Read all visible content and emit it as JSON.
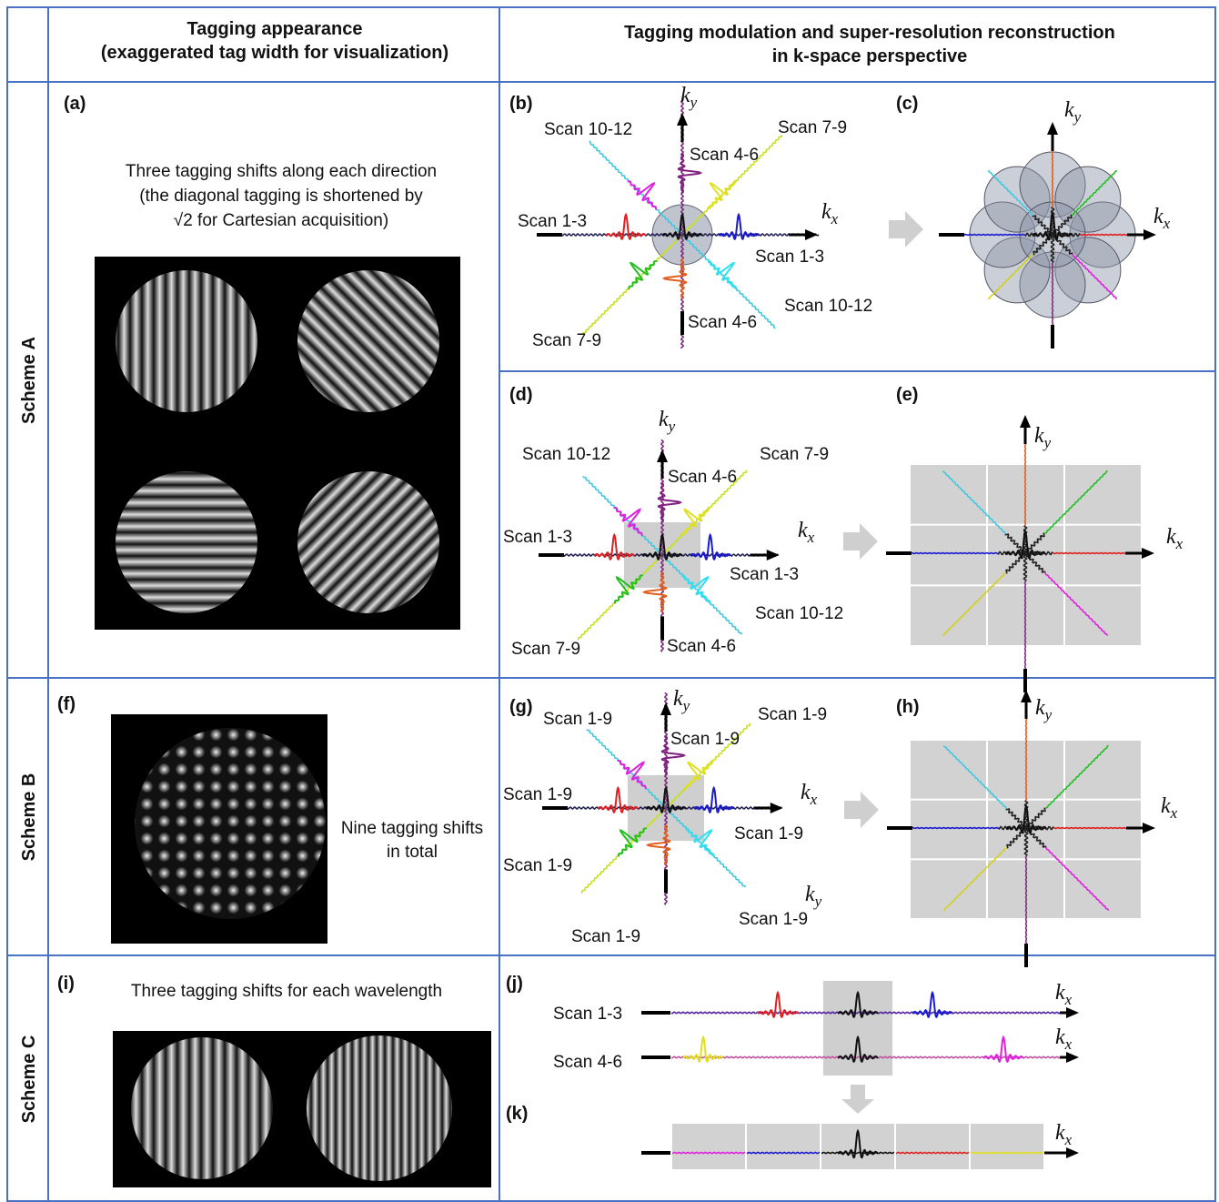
{
  "header": {
    "col2": [
      "Tagging appearance",
      "(exaggerated tag width for visualization)"
    ],
    "col3": [
      "Tagging modulation and super-resolution reconstruction",
      "in k-space perspective"
    ]
  },
  "rows": [
    "Scheme A",
    "Scheme B",
    "Scheme C"
  ],
  "axis": {
    "k": "k",
    "x": "x",
    "y": "y"
  },
  "panels": {
    "a": {
      "label": "(a)",
      "text": [
        "Three tagging shifts along each direction",
        "(the diagonal tagging is shortened by",
        "√2 for Cartesian acquisition)"
      ]
    },
    "b": {
      "label": "(b)",
      "scans": [
        "Scan 10-12",
        "Scan 7-9",
        "Scan 4-6",
        "Scan 1-3",
        "Scan 1-3",
        "Scan 10-12",
        "Scan 4-6",
        "Scan 7-9"
      ]
    },
    "c": {
      "label": "(c)"
    },
    "d": {
      "label": "(d)",
      "scans": [
        "Scan 10-12",
        "Scan 7-9",
        "Scan 4-6",
        "Scan 1-3",
        "Scan 1-3",
        "Scan 10-12",
        "Scan 4-6",
        "Scan 7-9"
      ]
    },
    "e": {
      "label": "(e)"
    },
    "f": {
      "label": "(f)",
      "text": [
        "Nine tagging shifts",
        "in total"
      ]
    },
    "g": {
      "label": "(g)",
      "scans": [
        "Scan 1-9",
        "Scan 1-9",
        "Scan 1-9",
        "Scan 1-9",
        "Scan 1-9",
        "Scan 1-9",
        "Scan 1-9",
        "Scan 1-9"
      ]
    },
    "h": {
      "label": "(h)"
    },
    "i": {
      "label": "(i)",
      "text": [
        "Three tagging shifts for each wavelength"
      ]
    },
    "j": {
      "label": "(j)",
      "scans": [
        "Scan 1-3",
        "Scan 4-6"
      ]
    },
    "k": {
      "label": "(k)"
    }
  }
}
